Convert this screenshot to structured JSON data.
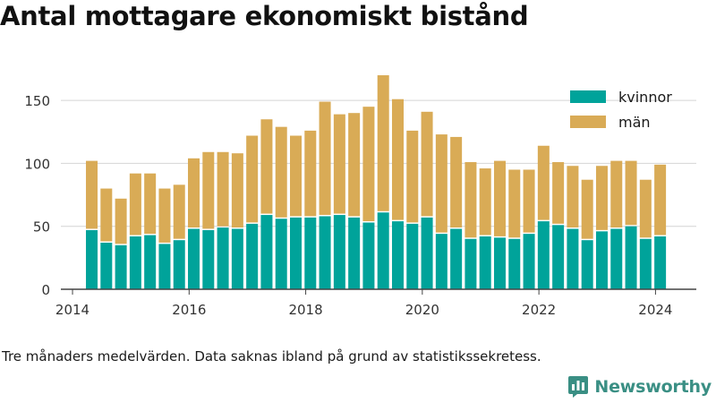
{
  "chart_data": {
    "type": "bar",
    "stacked": true,
    "title": "Antal mottagare ekonomiskt bistånd",
    "xlabel": "",
    "ylabel": "",
    "x_ticks": [
      "2014",
      "2016",
      "2018",
      "2020",
      "2022",
      "2024"
    ],
    "y_ticks": [
      "0",
      "50",
      "100",
      "150"
    ],
    "ylim": [
      0,
      175
    ],
    "xlim": [
      2013.8,
      2024.7
    ],
    "grid": "horizontal",
    "legend_position": "top-right",
    "x": [
      2014.33,
      2014.58,
      2014.83,
      2015.08,
      2015.33,
      2015.58,
      2015.83,
      2016.08,
      2016.33,
      2016.58,
      2016.83,
      2017.08,
      2017.33,
      2017.58,
      2017.83,
      2018.08,
      2018.33,
      2018.58,
      2018.83,
      2019.08,
      2019.33,
      2019.58,
      2019.83,
      2020.08,
      2020.33,
      2020.58,
      2020.83,
      2021.08,
      2021.33,
      2021.58,
      2021.83,
      2022.08,
      2022.33,
      2022.58,
      2022.83,
      2023.08,
      2023.33,
      2023.58,
      2023.83,
      2024.08
    ],
    "series": [
      {
        "name": "kvinnor",
        "color": "#00a39a",
        "values": [
          47,
          37,
          35,
          42,
          43,
          36,
          39,
          48,
          47,
          49,
          48,
          52,
          59,
          56,
          57,
          57,
          58,
          59,
          57,
          53,
          61,
          54,
          52,
          57,
          44,
          48,
          40,
          42,
          41,
          40,
          44,
          54,
          51,
          48,
          39,
          46,
          48,
          50,
          40,
          42
        ]
      },
      {
        "name": "män",
        "color": "#d9ab56",
        "values": [
          55,
          43,
          37,
          50,
          49,
          44,
          44,
          56,
          62,
          60,
          60,
          70,
          76,
          73,
          65,
          69,
          91,
          80,
          83,
          92,
          109,
          97,
          74,
          84,
          79,
          73,
          61,
          54,
          61,
          55,
          51,
          60,
          50,
          50,
          48,
          52,
          54,
          52,
          47,
          57
        ]
      }
    ]
  },
  "caption": "Tre månaders medelvärden. Data saknas ibland på grund av statistikssekretess.",
  "brand": {
    "name": "Newsworthy",
    "icon": "newsworthy-logo-icon",
    "color": "#3a8f84"
  }
}
